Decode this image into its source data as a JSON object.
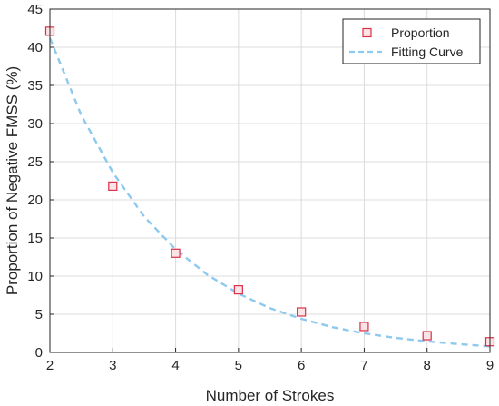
{
  "chart_data": {
    "type": "scatter",
    "title": "",
    "xlabel": "Number of Strokes",
    "ylabel": "Proportion of Negative FMSS (%)",
    "xlim": [
      2,
      9
    ],
    "ylim": [
      0,
      45
    ],
    "xticks": [
      "2",
      "3",
      "4",
      "5",
      "6",
      "7",
      "8",
      "9"
    ],
    "yticks": [
      "0",
      "5",
      "10",
      "15",
      "20",
      "25",
      "30",
      "35",
      "40",
      "45"
    ],
    "grid": true,
    "legend_position": "top-right",
    "series": [
      {
        "name": "Proportion",
        "kind": "scatter",
        "marker": "square",
        "color": "#d9304a",
        "fill": "#fbe3e6",
        "x": [
          2,
          3,
          4,
          5,
          6,
          7,
          8,
          9
        ],
        "y": [
          42.1,
          21.8,
          13.0,
          8.2,
          5.3,
          3.4,
          2.2,
          1.4
        ]
      },
      {
        "name": "Fitting Curve",
        "kind": "line",
        "style": "dashed",
        "color": "#8ec9ef",
        "x": [
          2,
          2.5,
          3,
          3.5,
          4,
          4.5,
          5,
          5.5,
          6,
          6.5,
          7,
          7.5,
          8,
          8.5,
          9
        ],
        "y": [
          41.2,
          31.1,
          23.6,
          17.8,
          13.5,
          10.2,
          7.7,
          5.8,
          4.4,
          3.3,
          2.5,
          1.9,
          1.45,
          1.1,
          0.8
        ]
      }
    ]
  }
}
